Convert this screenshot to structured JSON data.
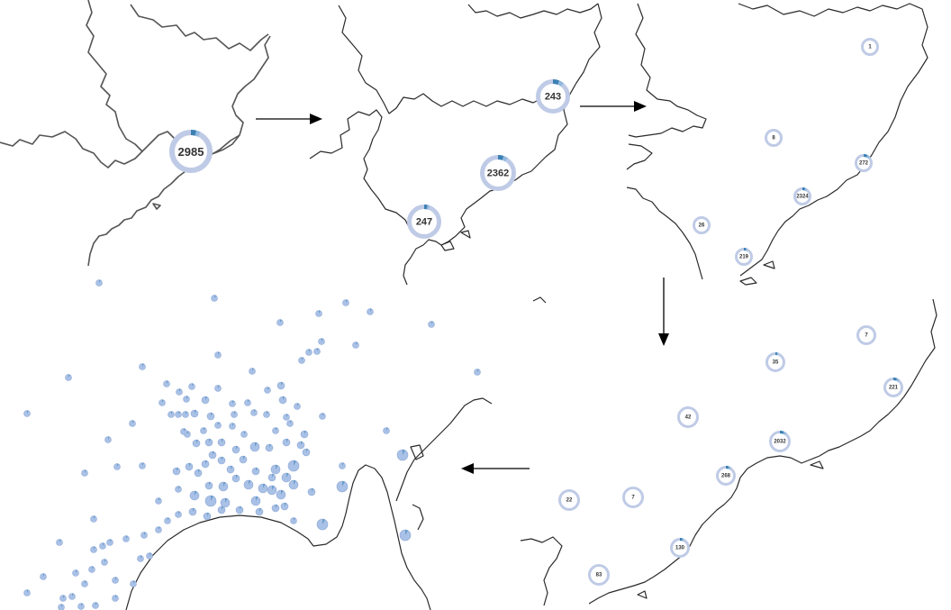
{
  "panels": [
    {
      "id": "zoom-1",
      "clusters": [
        {
          "count": "2985",
          "share": 0.04
        }
      ]
    },
    {
      "id": "zoom-2",
      "clusters": [
        {
          "count": "243",
          "share": 0.06
        },
        {
          "count": "2362",
          "share": 0.05
        },
        {
          "count": "247",
          "share": 0.03
        }
      ]
    },
    {
      "id": "zoom-3",
      "clusters": [
        {
          "count": "1",
          "share": 0.0
        },
        {
          "count": "8",
          "share": 0.0
        },
        {
          "count": "272",
          "share": 0.07
        },
        {
          "count": "2324",
          "share": 0.05
        },
        {
          "count": "26",
          "share": 0.0
        },
        {
          "count": "219",
          "share": 0.04
        }
      ]
    },
    {
      "id": "zoom-4",
      "clusters": [
        {
          "count": "7",
          "share": 0.0
        },
        {
          "count": "35",
          "share": 0.03
        },
        {
          "count": "221",
          "share": 0.06
        },
        {
          "count": "42",
          "share": 0.0
        },
        {
          "count": "2032",
          "share": 0.06
        },
        {
          "count": "268",
          "share": 0.05
        },
        {
          "count": "22",
          "share": 0.0
        },
        {
          "count": "7",
          "share": 0.0
        },
        {
          "count": "130",
          "share": 0.04
        },
        {
          "count": "83",
          "share": 0.0
        }
      ]
    },
    {
      "id": "zoom-5-individual-points"
    }
  ],
  "colors": {
    "ring": "#bfcbe6",
    "highlight": "#3b7fb4",
    "highlight_light": "#7fb0d8",
    "point": "#a9c1e6",
    "coast": "#2a2a2a",
    "arrow": "#000000"
  },
  "arrows": [
    "right",
    "right",
    "down",
    "left"
  ]
}
